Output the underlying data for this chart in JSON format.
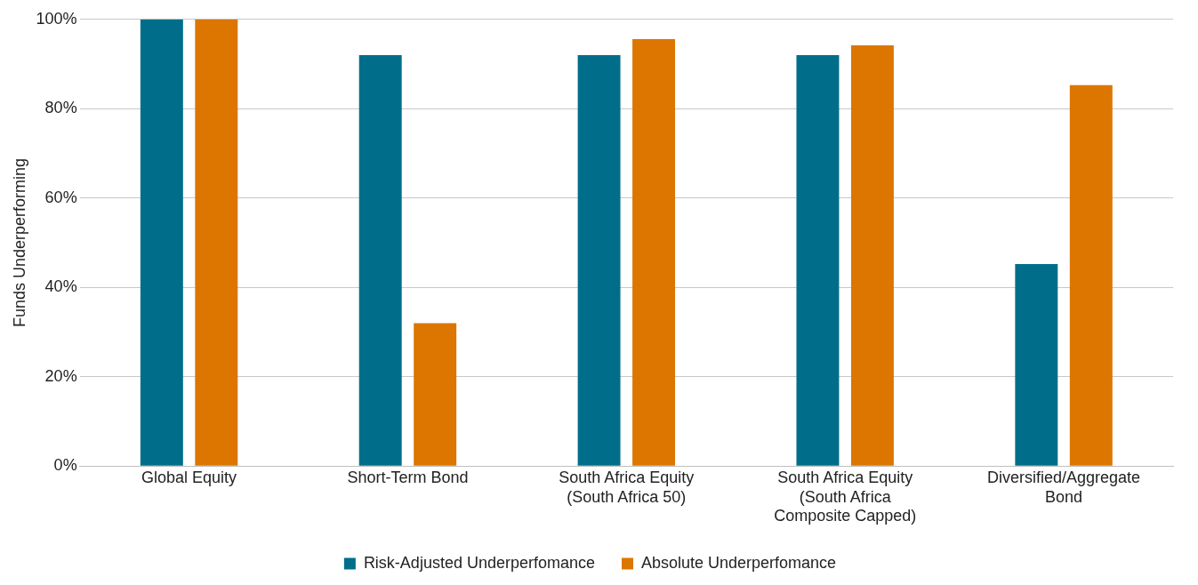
{
  "chart_data": {
    "type": "bar",
    "ylabel": "Funds Underperforming",
    "categories": [
      "Global Equity",
      "Short-Term Bond",
      "South Africa Equity (South Africa 50)",
      "South Africa Equity (South Africa Composite Capped)",
      "Diversified/Aggregate Bond"
    ],
    "series": [
      {
        "name": "Risk-Adjusted Underperfomance",
        "color": "#006e8a",
        "values": [
          100,
          92,
          92,
          92,
          45.2
        ]
      },
      {
        "name": "Absolute Underperfomance",
        "color": "#dc7600",
        "values": [
          100,
          32,
          95.6,
          94.2,
          85.3
        ]
      }
    ],
    "ylim": [
      0,
      100
    ],
    "yticks": [
      {
        "value": 0,
        "label": "0%"
      },
      {
        "value": 20,
        "label": "20%"
      },
      {
        "value": 40,
        "label": "40%"
      },
      {
        "value": 60,
        "label": "60%"
      },
      {
        "value": 80,
        "label": "80%"
      },
      {
        "value": 100,
        "label": "100%"
      }
    ],
    "grid": "y",
    "legend": "bottom"
  }
}
